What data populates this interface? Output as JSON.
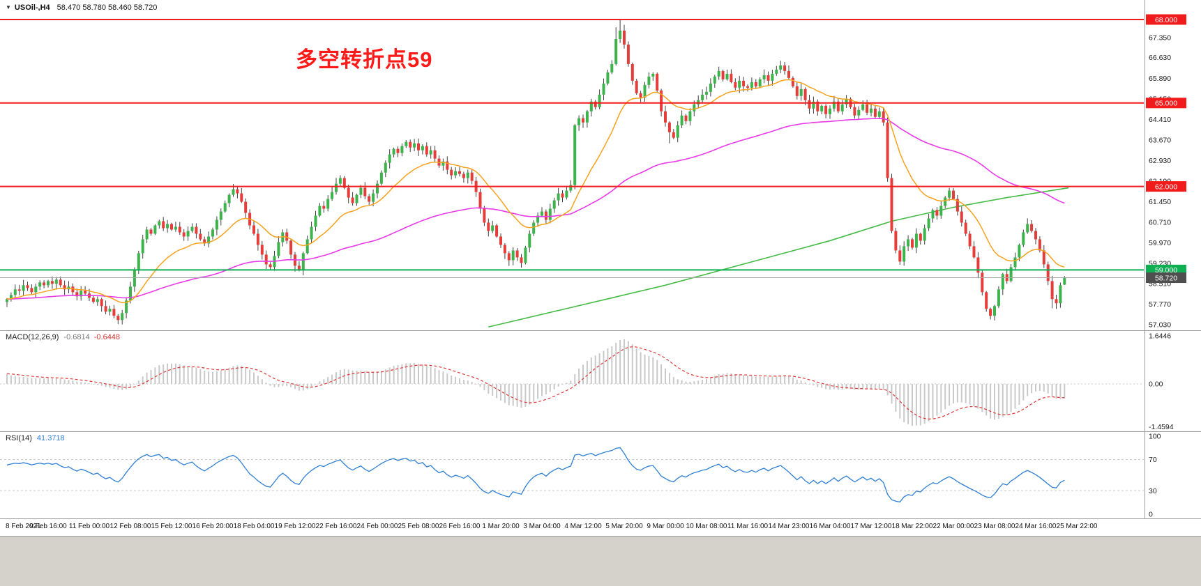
{
  "window": {
    "symbol": "USOil-,H4",
    "ohlc_text": "58.470 58.780 58.460 58.720",
    "collapse_icon": "triangle-down"
  },
  "annotation": {
    "text": "多空转折点59",
    "color": "#ff1a1a"
  },
  "colors": {
    "up": "#3cb44b",
    "down": "#e43d3a",
    "wick": "#404040",
    "ma_fast": "#f6a21d",
    "ma_mid": "#e83ae8",
    "ma_slow": "#44bb44",
    "hline_red": "#f21b1b",
    "hline_green": "#0faf54",
    "price_line": "#a8a8a8",
    "price_box": "#4f4f4f",
    "macd_hist": "#c9c9c9",
    "macd_signal": "#e03535",
    "rsi_line": "#2e7fd4",
    "axis_text": "#1a1a1a",
    "divider": "#9c9c9c"
  },
  "main_chart": {
    "y_ticks": [
      "68.000",
      "67.350",
      "66.630",
      "65.890",
      "65.150",
      "64.410",
      "63.670",
      "62.930",
      "62.190",
      "61.450",
      "60.710",
      "59.970",
      "59.230",
      "58.510",
      "57.770",
      "57.030"
    ],
    "hlines": [
      {
        "price": 68.0,
        "label": "68.000",
        "color": "red",
        "width": 2
      },
      {
        "price": 65.0,
        "label": "65.000",
        "color": "red",
        "width": 2
      },
      {
        "price": 62.0,
        "label": "62.000",
        "color": "red",
        "width": 2
      },
      {
        "price": 59.0,
        "label": "59.000",
        "color": "green",
        "width": 2
      },
      {
        "price": 58.72,
        "label": "58.720",
        "color": "gray",
        "width": 1
      }
    ]
  },
  "chart_data": {
    "type": "candlestick",
    "symbol": "USOil",
    "timeframe": "H4",
    "title": "USOil-,H4 58.470 58.780 58.460 58.720",
    "price_range": [
      57.03,
      68.0
    ],
    "x_labels": [
      "8 Feb 2021",
      "9 Feb 16:00",
      "11 Feb 00:00",
      "12 Feb 08:00",
      "15 Feb 12:00",
      "16 Feb 20:00",
      "18 Feb 04:00",
      "19 Feb 12:00",
      "22 Feb 16:00",
      "24 Feb 00:00",
      "25 Feb 08:00",
      "26 Feb 16:00",
      "1 Mar 20:00",
      "3 Mar 04:00",
      "4 Mar 12:00",
      "5 Mar 20:00",
      "9 Mar 00:00",
      "10 Mar 08:00",
      "11 Mar 16:00",
      "14 Mar 23:00",
      "16 Mar 04:00",
      "17 Mar 12:00",
      "18 Mar 22:00",
      "22 Mar 00:00",
      "23 Mar 08:00",
      "24 Mar 16:00",
      "25 Mar 22:00"
    ],
    "closes": [
      57.95,
      58.1,
      58.3,
      58.25,
      58.45,
      58.35,
      58.2,
      58.4,
      58.55,
      58.45,
      58.6,
      58.5,
      58.65,
      58.45,
      58.3,
      58.4,
      58.2,
      58.05,
      58.25,
      58.15,
      58.0,
      57.85,
      57.95,
      57.7,
      57.5,
      57.6,
      57.35,
      57.2,
      57.45,
      57.9,
      58.4,
      59.0,
      59.6,
      60.1,
      60.45,
      60.3,
      60.6,
      60.75,
      60.5,
      60.65,
      60.45,
      60.55,
      60.35,
      60.2,
      60.4,
      60.55,
      60.3,
      60.1,
      59.95,
      60.2,
      60.45,
      60.8,
      61.1,
      61.4,
      61.7,
      61.9,
      61.75,
      61.45,
      61.05,
      60.6,
      60.3,
      59.9,
      59.55,
      59.2,
      59.1,
      59.5,
      60.0,
      60.35,
      60.05,
      59.55,
      59.15,
      59.0,
      59.6,
      60.1,
      60.55,
      60.95,
      61.3,
      61.2,
      61.55,
      61.8,
      62.1,
      62.3,
      61.95,
      61.6,
      61.4,
      61.7,
      61.95,
      61.65,
      61.45,
      61.75,
      62.1,
      62.5,
      62.85,
      63.15,
      63.35,
      63.2,
      63.45,
      63.6,
      63.4,
      63.55,
      63.3,
      63.45,
      63.15,
      63.3,
      63.0,
      62.75,
      62.9,
      62.6,
      62.4,
      62.55,
      62.45,
      62.3,
      62.5,
      62.2,
      61.8,
      61.2,
      60.7,
      60.4,
      60.6,
      60.2,
      59.9,
      59.6,
      59.35,
      59.7,
      59.45,
      59.25,
      59.8,
      60.3,
      60.7,
      60.95,
      61.1,
      60.8,
      61.2,
      61.5,
      61.75,
      61.6,
      61.85,
      62.05,
      64.2,
      64.45,
      64.3,
      64.7,
      65.05,
      64.85,
      65.3,
      65.7,
      66.1,
      66.4,
      67.3,
      67.6,
      67.1,
      66.4,
      65.8,
      65.35,
      65.2,
      65.65,
      65.95,
      66.05,
      65.45,
      64.7,
      64.3,
      63.95,
      63.75,
      64.2,
      64.55,
      64.35,
      64.7,
      64.95,
      65.1,
      65.3,
      65.4,
      65.7,
      65.95,
      66.15,
      65.85,
      66.05,
      65.75,
      65.55,
      65.8,
      65.6,
      65.55,
      65.75,
      65.6,
      65.85,
      66.0,
      65.8,
      66.05,
      66.2,
      66.35,
      66.15,
      65.9,
      65.6,
      65.25,
      65.5,
      65.1,
      64.8,
      65.05,
      64.7,
      64.9,
      64.6,
      64.8,
      65.05,
      64.7,
      64.95,
      65.15,
      64.85,
      64.55,
      64.75,
      64.95,
      64.65,
      64.8,
      64.5,
      64.7,
      64.3,
      62.3,
      60.4,
      59.7,
      59.3,
      59.85,
      60.1,
      59.8,
      60.3,
      60.05,
      60.5,
      60.85,
      61.15,
      60.95,
      61.3,
      61.6,
      61.85,
      61.55,
      61.1,
      60.7,
      60.3,
      59.85,
      59.45,
      58.9,
      58.2,
      57.6,
      57.35,
      57.7,
      58.3,
      58.85,
      58.6,
      59.1,
      59.45,
      59.9,
      60.35,
      60.65,
      60.4,
      60.1,
      59.7,
      59.2,
      58.6,
      57.95,
      57.8,
      58.45,
      58.72
    ],
    "last_bar": {
      "open": 58.47,
      "high": 58.78,
      "low": 58.46,
      "close": 58.72
    },
    "wick_overrides": {
      "27": {
        "low": 57.05
      },
      "71": {
        "low": 58.95
      },
      "125": {
        "low": 59.08
      },
      "148": {
        "high": 67.72
      },
      "149": {
        "high": 67.98
      },
      "161": {
        "low": 63.55
      },
      "239": {
        "low": 57.22
      },
      "254": {
        "low": 57.62
      },
      "257": {
        "open": 58.47,
        "high": 58.78,
        "low": 58.46
      }
    },
    "moving_averages": [
      {
        "name": "fast",
        "type": "ema",
        "period": 18,
        "color_key": "ma_fast"
      },
      {
        "name": "mid",
        "type": "ema",
        "period": 90,
        "color_key": "ma_mid"
      },
      {
        "name": "slow",
        "type": "anchors",
        "color_key": "ma_slow",
        "points": [
          [
            117,
            56.95
          ],
          [
            140,
            57.75
          ],
          [
            160,
            58.45
          ],
          [
            180,
            59.25
          ],
          [
            200,
            60.05
          ],
          [
            215,
            60.75
          ],
          [
            230,
            61.25
          ],
          [
            243,
            61.6
          ],
          [
            258,
            61.95
          ]
        ]
      }
    ]
  },
  "macd": {
    "label": "MACD(12,26,9)",
    "value_main": "-0.6814",
    "value_signal": "-0.6448",
    "params": [
      12,
      26,
      9
    ],
    "y_ticks": [
      "1.6446",
      "0.00",
      "-1.4594"
    ],
    "y_tick_values": [
      1.6446,
      0,
      -1.4594
    ]
  },
  "rsi": {
    "label": "RSI(14)",
    "value": "41.3718",
    "period": 14,
    "levels": [
      70,
      30
    ],
    "y_ticks": [
      "100",
      "70",
      "30",
      "0"
    ],
    "y_tick_values": [
      100,
      70,
      30,
      0
    ]
  }
}
